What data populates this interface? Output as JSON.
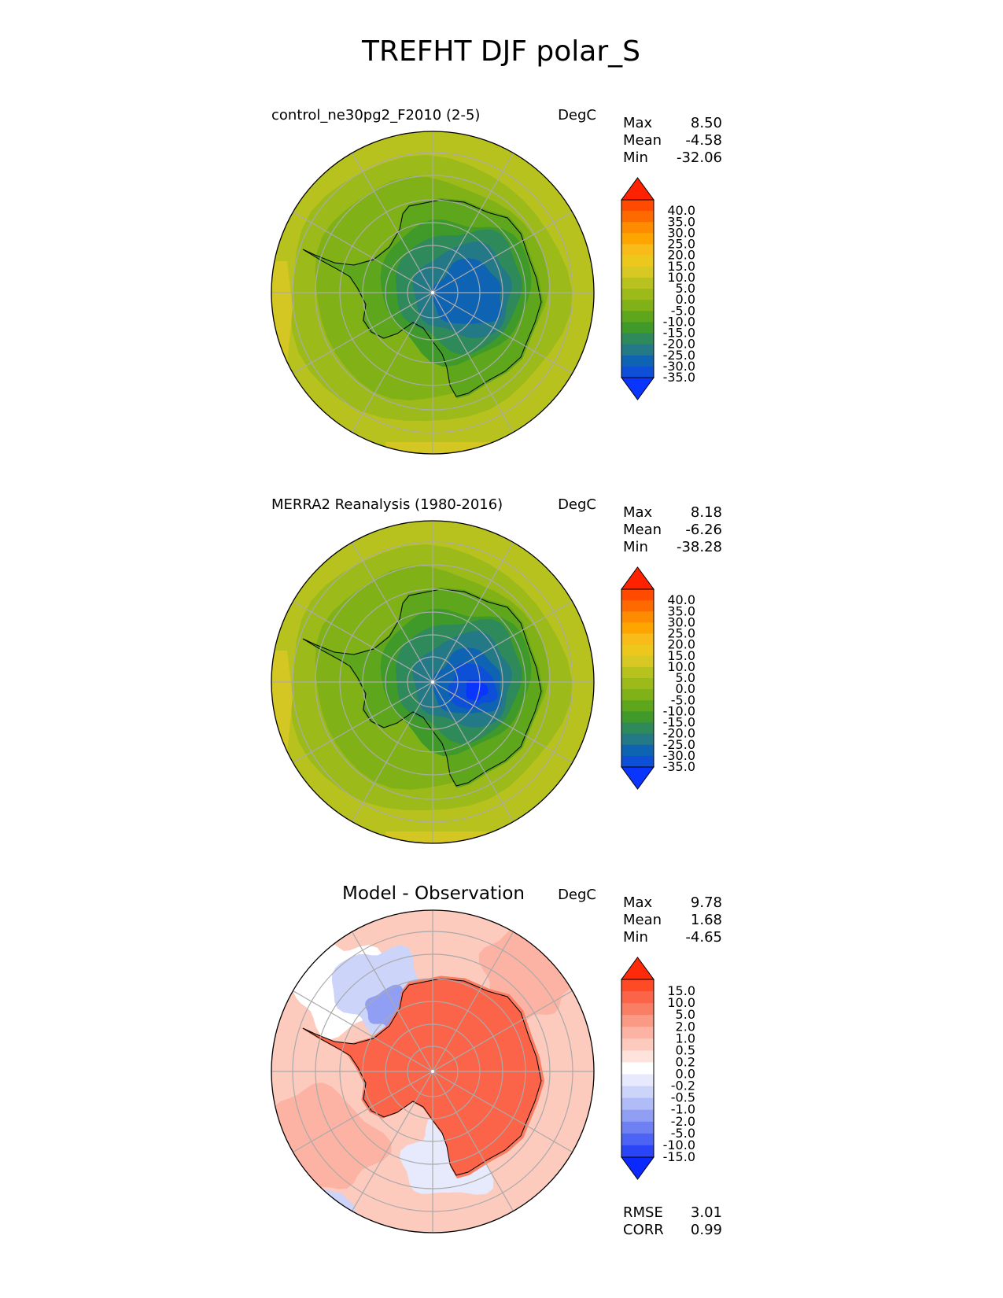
{
  "title": "TREFHT DJF polar_S",
  "panels": [
    {
      "id": "test",
      "title": "control_ne30pg2_F2010 (2-5)",
      "units": "DegC",
      "stats": [
        {
          "label": "Max",
          "value": "8.50"
        },
        {
          "label": "Mean",
          "value": "-4.58"
        },
        {
          "label": "Min",
          "value": "-32.06"
        }
      ],
      "colorbar": {
        "ticks": [
          "40.0",
          "35.0",
          "30.0",
          "25.0",
          "20.0",
          "15.0",
          "10.0",
          "5.0",
          "0.0",
          "-5.0",
          "-10.0",
          "-15.0",
          "-20.0",
          "-25.0",
          "-30.0",
          "-35.0"
        ],
        "colors": [
          "#ff2200",
          "#ff4a00",
          "#ff6a00",
          "#ff8c00",
          "#ffa500",
          "#f8bb1a",
          "#edc81c",
          "#d7c823",
          "#b8c21e",
          "#9cbb1a",
          "#80b217",
          "#5ea61c",
          "#3f9a2a",
          "#2e8a5a",
          "#237a86",
          "#0e64b2",
          "#0d4fd6",
          "#0a35ff"
        ]
      },
      "chart_data": {
        "type": "heatmap",
        "projection": "south polar stereographic",
        "variable": "TREFHT",
        "season": "DJF",
        "units": "DegC",
        "max": 8.5,
        "mean": -4.58,
        "min": -32.06,
        "interior_band_values": [
          -30.0,
          -25.0,
          -20.0,
          -15.0,
          -10.0,
          -5.0,
          0.0,
          5.0
        ],
        "antarctic_plateau_min_band": -32.5
      }
    },
    {
      "id": "reference",
      "title": "MERRA2 Reanalysis (1980-2016)",
      "units": "DegC",
      "stats": [
        {
          "label": "Max",
          "value": "8.18"
        },
        {
          "label": "Mean",
          "value": "-6.26"
        },
        {
          "label": "Min",
          "value": "-38.28"
        }
      ],
      "colorbar": {
        "ticks": [
          "40.0",
          "35.0",
          "30.0",
          "25.0",
          "20.0",
          "15.0",
          "10.0",
          "5.0",
          "0.0",
          "-5.0",
          "-10.0",
          "-15.0",
          "-20.0",
          "-25.0",
          "-30.0",
          "-35.0"
        ],
        "colors": [
          "#ff2200",
          "#ff4a00",
          "#ff6a00",
          "#ff8c00",
          "#ffa500",
          "#f8bb1a",
          "#edc81c",
          "#d7c823",
          "#b8c21e",
          "#9cbb1a",
          "#80b217",
          "#5ea61c",
          "#3f9a2a",
          "#2e8a5a",
          "#237a86",
          "#0e64b2",
          "#0d4fd6",
          "#0a35ff"
        ]
      },
      "chart_data": {
        "type": "heatmap",
        "projection": "south polar stereographic",
        "variable": "TREFHT",
        "season": "DJF",
        "units": "DegC",
        "max": 8.18,
        "mean": -6.26,
        "min": -38.28,
        "interior_band_values": [
          -35.0,
          -30.0,
          -25.0,
          -20.0,
          -15.0,
          -10.0,
          -5.0,
          0.0,
          5.0
        ],
        "antarctic_plateau_min_band": -37.5
      }
    },
    {
      "id": "diff",
      "title": "Model - Observation",
      "units": "DegC",
      "stats": [
        {
          "label": "Max",
          "value": "9.78"
        },
        {
          "label": "Mean",
          "value": "1.68"
        },
        {
          "label": "Min",
          "value": "-4.65"
        }
      ],
      "extra_stats": [
        {
          "label": "RMSE",
          "value": "3.01"
        },
        {
          "label": "CORR",
          "value": "0.99"
        }
      ],
      "colorbar": {
        "ticks": [
          "15.0",
          "10.0",
          "5.0",
          "2.0",
          "1.0",
          "0.5",
          "0.2",
          "0.0",
          "-0.2",
          "-0.5",
          "-1.0",
          "-2.0",
          "-5.0",
          "-10.0",
          "-15.0"
        ],
        "colors": [
          "#ff2a0a",
          "#ff4a26",
          "#fb6448",
          "#f97e64",
          "#fb9a84",
          "#fcb3a4",
          "#fdcabe",
          "#fee3dc",
          "#ffffff",
          "#e6eafc",
          "#ccd4fa",
          "#b0bcf7",
          "#909ff4",
          "#6f81f2",
          "#4c63f3",
          "#2a45f6",
          "#0b28ff"
        ]
      },
      "chart_data": {
        "type": "heatmap",
        "projection": "south polar stereographic",
        "variable": "TREFHT difference",
        "season": "DJF",
        "units": "DegC",
        "max": 9.78,
        "mean": 1.68,
        "min": -4.65,
        "rmse": 3.01,
        "corr": 0.99,
        "antarctic_interior_band": 5.0,
        "ocean_band_range": [
          0.2,
          2.0
        ],
        "weddell_ross_sea_band_range": [
          -2.0,
          -0.2
        ]
      }
    }
  ]
}
